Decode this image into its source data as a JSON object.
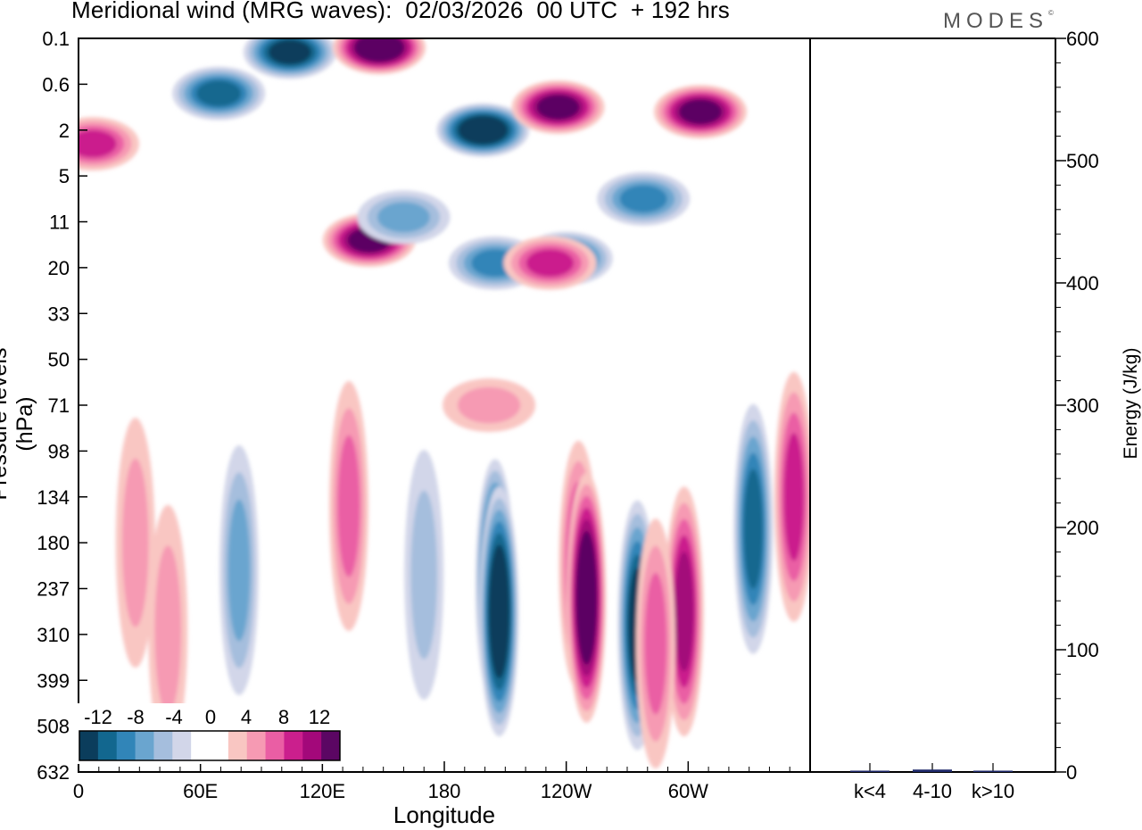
{
  "header": {
    "title": "Meridional wind (MRG waves):  02/03/2026  00 UTC  + 192 hrs",
    "brand": "MODES",
    "brand_mark": "©"
  },
  "colors": {
    "neg": [
      "#0b3d5c",
      "#12678f",
      "#3185b8",
      "#6aa5cf",
      "#a5bedd",
      "#d2d6e9"
    ],
    "zero": "#ffffff",
    "pos": [
      "#f9c6c2",
      "#f69ab3",
      "#ea5ea4",
      "#cb1f8d",
      "#a3087a",
      "#5b0663"
    ],
    "energy_bar": "#1f2a6b"
  },
  "chart_data": [
    {
      "type": "heatmap",
      "title": "Meridional wind (MRG waves):  02/03/2026  00 UTC  + 192 hrs",
      "xlabel": "Longitude",
      "ylabel": "Pressure levels (hPa)",
      "x_ticks": [
        "0",
        "60E",
        "120E",
        "180",
        "120W",
        "60W"
      ],
      "x_tick_degrees": [
        0,
        60,
        120,
        180,
        240,
        300
      ],
      "xlim_degrees": [
        0,
        360
      ],
      "y_ticks": [
        "0.1",
        "0.6",
        "2",
        "5",
        "11",
        "20",
        "33",
        "50",
        "71",
        "98",
        "134",
        "180",
        "237",
        "310",
        "399",
        "508",
        "632"
      ],
      "colorbar": {
        "labels": [
          "-12",
          "-8",
          "-4",
          "0",
          "4",
          "8",
          "12"
        ],
        "levels": [
          -14,
          -12,
          -10,
          -8,
          -6,
          -4,
          -2,
          2,
          4,
          6,
          8,
          10,
          12,
          14
        ]
      },
      "features": [
        {
          "lon": 205,
          "level": 11.9,
          "value": -14
        },
        {
          "lon": 143,
          "level": 4.4,
          "value": 12
        },
        {
          "lon": 199,
          "level": 2.0,
          "value": -14
        },
        {
          "lon": 236,
          "level": 1.5,
          "value": 12
        },
        {
          "lon": 306,
          "level": 1.6,
          "value": 12
        },
        {
          "lon": 69,
          "level": 1.2,
          "value": -10
        },
        {
          "lon": 104,
          "level": 0.3,
          "value": -12
        },
        {
          "lon": 148,
          "level": 0.2,
          "value": 14
        },
        {
          "lon": 7,
          "level": 2.3,
          "value": 8
        },
        {
          "lon": 160,
          "level": 3.9,
          "value": -6
        },
        {
          "lon": 240,
          "level": 4.8,
          "value": -10
        },
        {
          "lon": 278,
          "level": 3.5,
          "value": -8
        },
        {
          "lon": 205,
          "level": 4.9,
          "value": -8
        },
        {
          "lon": 232,
          "level": 4.9,
          "value": 8
        },
        {
          "lon": 246,
          "level": 11.5,
          "value": 8
        },
        {
          "lon": 207,
          "level": 12.5,
          "value": -14
        },
        {
          "lon": 250,
          "level": 12.2,
          "value": 14
        },
        {
          "lon": 275,
          "level": 12.8,
          "value": -12
        },
        {
          "lon": 298,
          "level": 12.5,
          "value": 10
        },
        {
          "lon": 284,
          "level": 13.2,
          "value": 6
        },
        {
          "lon": 332,
          "level": 10.7,
          "value": -10
        },
        {
          "lon": 352,
          "level": 10.0,
          "value": 8
        },
        {
          "lon": 28,
          "level": 11.0,
          "value": 4
        },
        {
          "lon": 44,
          "level": 12.9,
          "value": 4
        },
        {
          "lon": 79,
          "level": 11.6,
          "value": -6
        },
        {
          "lon": 133,
          "level": 10.2,
          "value": 6
        },
        {
          "lon": 170,
          "level": 11.7,
          "value": -4
        },
        {
          "lon": 202,
          "level": 8.0,
          "value": 4
        }
      ]
    },
    {
      "type": "bar",
      "ylabel": "Energy (J/kg)",
      "categories": [
        "k<4",
        "4-10",
        "k>10"
      ],
      "values": [
        0.5,
        2,
        0.5
      ],
      "ylim": [
        0,
        600
      ],
      "y_ticks": [
        "0",
        "100",
        "200",
        "300",
        "400",
        "500",
        "600"
      ]
    }
  ]
}
